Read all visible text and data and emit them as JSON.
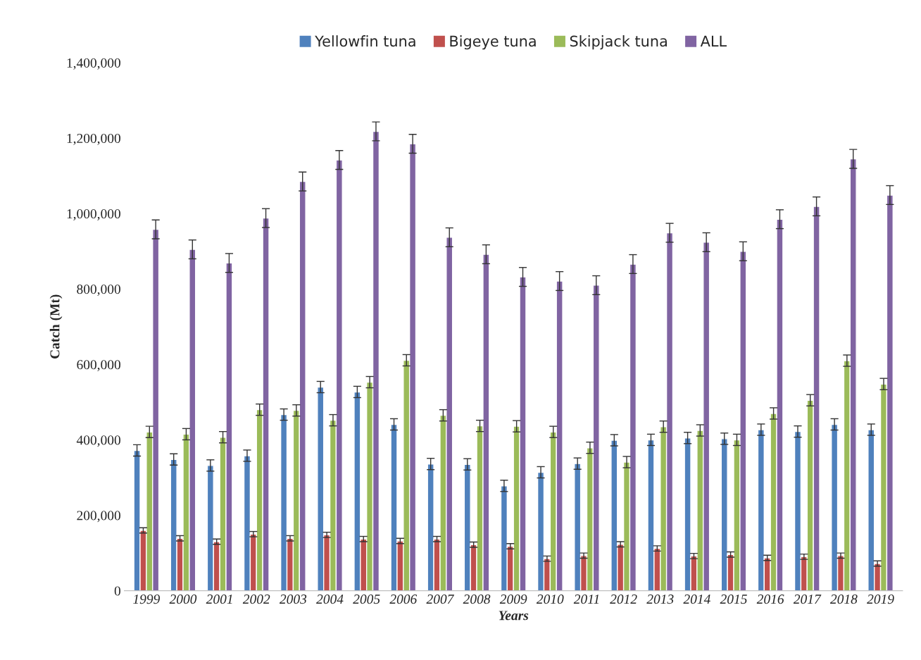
{
  "chart_data": {
    "type": "bar",
    "xlabel": "Years",
    "ylabel": "Catch (Mt)",
    "categories": [
      "1999",
      "2000",
      "2001",
      "2002",
      "2003",
      "2004",
      "2005",
      "2006",
      "2007",
      "2008",
      "2009",
      "2010",
      "2011",
      "2012",
      "2013",
      "2014",
      "2015",
      "2016",
      "2017",
      "2018",
      "2019"
    ],
    "series": [
      {
        "name": "Yellowfin tuna",
        "color": "#4f81bd",
        "values": [
          372000,
          348000,
          332000,
          358000,
          467000,
          540000,
          527000,
          441000,
          336000,
          335000,
          278000,
          314000,
          337000,
          399000,
          400000,
          405000,
          403000,
          427000,
          422000,
          441000,
          427000
        ],
        "errors": [
          15000,
          15000,
          15000,
          15000,
          15000,
          15000,
          15000,
          15000,
          15000,
          15000,
          15000,
          15000,
          15000,
          15000,
          15000,
          15000,
          15000,
          15000,
          15000,
          15000,
          15000
        ]
      },
      {
        "name": "Bigeye tuna",
        "color": "#c0504d",
        "values": [
          160000,
          139000,
          130000,
          150000,
          139000,
          148000,
          137000,
          132000,
          137000,
          122000,
          118000,
          85000,
          93000,
          123000,
          112000,
          92000,
          96000,
          87000,
          90000,
          93000,
          72000
        ],
        "errors": [
          7000,
          7000,
          7000,
          7000,
          7000,
          7000,
          7000,
          7000,
          7000,
          7000,
          7000,
          7000,
          7000,
          7000,
          7000,
          7000,
          7000,
          7000,
          7000,
          7000,
          7000
        ]
      },
      {
        "name": "Skipjack tuna",
        "color": "#9bbb59",
        "values": [
          421000,
          415000,
          407000,
          480000,
          478000,
          452000,
          553000,
          611000,
          465000,
          437000,
          436000,
          421000,
          379000,
          341000,
          435000,
          425000,
          400000,
          470000,
          505000,
          610000,
          548000
        ],
        "errors": [
          15000,
          15000,
          15000,
          15000,
          15000,
          15000,
          15000,
          15000,
          15000,
          15000,
          15000,
          15000,
          15000,
          15000,
          15000,
          15000,
          15000,
          15000,
          15000,
          15000,
          15000
        ]
      },
      {
        "name": "ALL",
        "color": "#8064a2",
        "values": [
          958000,
          905000,
          869000,
          988000,
          1085000,
          1142000,
          1218000,
          1185000,
          937000,
          892000,
          832000,
          821000,
          810000,
          866000,
          949000,
          924000,
          900000,
          985000,
          1019000,
          1145000,
          1049000
        ],
        "errors": [
          25000,
          25000,
          25000,
          25000,
          25000,
          25000,
          25000,
          25000,
          25000,
          25000,
          25000,
          25000,
          25000,
          25000,
          25000,
          25000,
          25000,
          25000,
          25000,
          25000,
          25000
        ]
      }
    ],
    "ylim": [
      0,
      1400000
    ],
    "yticks": [
      {
        "value": 0,
        "label": "0"
      },
      {
        "value": 200000,
        "label": "200,000"
      },
      {
        "value": 400000,
        "label": "400,000"
      },
      {
        "value": 600000,
        "label": "600,000"
      },
      {
        "value": 800000,
        "label": "800,000"
      },
      {
        "value": 1000000,
        "label": "1,000,000"
      },
      {
        "value": 1200000,
        "label": "1,200,000"
      },
      {
        "value": 1400000,
        "label": "1,400,000"
      }
    ],
    "grid": false,
    "legend": "top"
  }
}
